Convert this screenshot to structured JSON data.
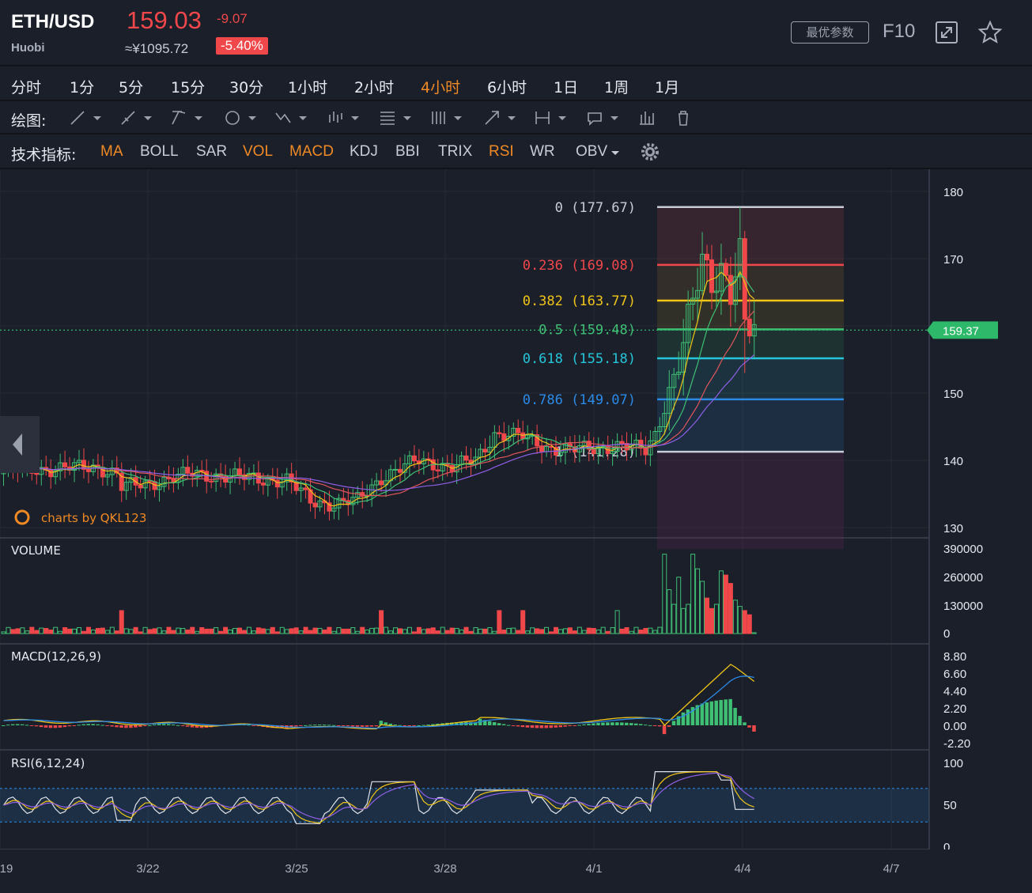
{
  "header": {
    "symbol": "ETH/USD",
    "exchange": "Huobi",
    "price": "159.03",
    "change": "-9.07",
    "price_cny": "≈¥1095.72",
    "change_pct": "-5.40%",
    "best_params_label": "最优参数",
    "f10_label": "F10"
  },
  "periods": [
    {
      "label": "分时",
      "active": false
    },
    {
      "label": "1分",
      "active": false
    },
    {
      "label": "5分",
      "active": false
    },
    {
      "label": "15分",
      "active": false
    },
    {
      "label": "30分",
      "active": false
    },
    {
      "label": "1小时",
      "active": false
    },
    {
      "label": "2小时",
      "active": false
    },
    {
      "label": "4小时",
      "active": true
    },
    {
      "label": "6小时",
      "active": false
    },
    {
      "label": "1日",
      "active": false
    },
    {
      "label": "1周",
      "active": false
    },
    {
      "label": "1月",
      "active": false
    }
  ],
  "drawing": {
    "label": "绘图:",
    "tools": [
      "line-tool-icon",
      "ray-tool-icon",
      "channel-tool-icon",
      "circle-tool-icon",
      "wave-tool-icon",
      "pattern-tool-icon",
      "fib-tool-icon",
      "gann-tool-icon",
      "arrow-tool-icon",
      "measure-tool-icon",
      "annotation-tool-icon",
      "bars-tool-icon",
      "trash-icon"
    ]
  },
  "indicators": {
    "label": "技术指标:",
    "items": [
      {
        "label": "MA",
        "active": true
      },
      {
        "label": "BOLL",
        "active": false
      },
      {
        "label": "SAR",
        "active": false
      },
      {
        "label": "VOL",
        "active": true
      },
      {
        "label": "MACD",
        "active": true
      },
      {
        "label": "KDJ",
        "active": false
      },
      {
        "label": "BBI",
        "active": false
      },
      {
        "label": "TRIX",
        "active": false
      },
      {
        "label": "RSI",
        "active": true
      },
      {
        "label": "WR",
        "active": false
      },
      {
        "label": "OBV",
        "active": false
      }
    ]
  },
  "colors": {
    "up": "#3fbf74",
    "down": "#f0474a",
    "ma5": "#f0c419",
    "ma10": "#3fbf74",
    "ma20": "#e0555a",
    "ma30": "#8f5fe6",
    "accent": "#f08a24",
    "price_tag": "#2eb86a"
  },
  "watermark": "charts by QKL123",
  "chart_data": [
    {
      "type": "candlestick",
      "pane": "price",
      "ylim": [
        130,
        180
      ],
      "y_ticks": [
        180,
        170,
        150,
        140,
        130
      ],
      "current_price": "159.37",
      "fibonacci": [
        {
          "level": "0",
          "value": "177.67",
          "color": "#c8ccd6"
        },
        {
          "level": "0.236",
          "value": "169.08",
          "color": "#f0474a"
        },
        {
          "level": "0.382",
          "value": "163.77",
          "color": "#f0c419"
        },
        {
          "level": "0.5",
          "value": "159.48",
          "color": "#3fbf74"
        },
        {
          "level": "0.618",
          "value": "155.18",
          "color": "#26c6da"
        },
        {
          "level": "0.786",
          "value": "149.07",
          "color": "#2b8ae6"
        },
        {
          "level": "1",
          "value": "141.28",
          "color": "#c8ccd6"
        }
      ],
      "x_ticks": [
        "19",
        "3/22",
        "3/25",
        "3/28",
        "4/1",
        "4/4",
        "4/7"
      ]
    },
    {
      "type": "bar",
      "pane": "volume",
      "title": "VOLUME",
      "ylim": [
        0,
        390000
      ],
      "y_ticks": [
        "390000",
        "260000",
        "130000",
        "0"
      ]
    },
    {
      "type": "line",
      "pane": "macd",
      "title": "MACD(12,26,9)",
      "ylim": [
        -2.2,
        8.8
      ],
      "y_ticks": [
        "8.80",
        "6.60",
        "4.40",
        "2.20",
        "0.00",
        "-2.20"
      ]
    },
    {
      "type": "line",
      "pane": "rsi",
      "title": "RSI(6,12,24)",
      "ylim": [
        0,
        100
      ],
      "y_ticks": [
        "100",
        "50",
        "0"
      ]
    }
  ]
}
